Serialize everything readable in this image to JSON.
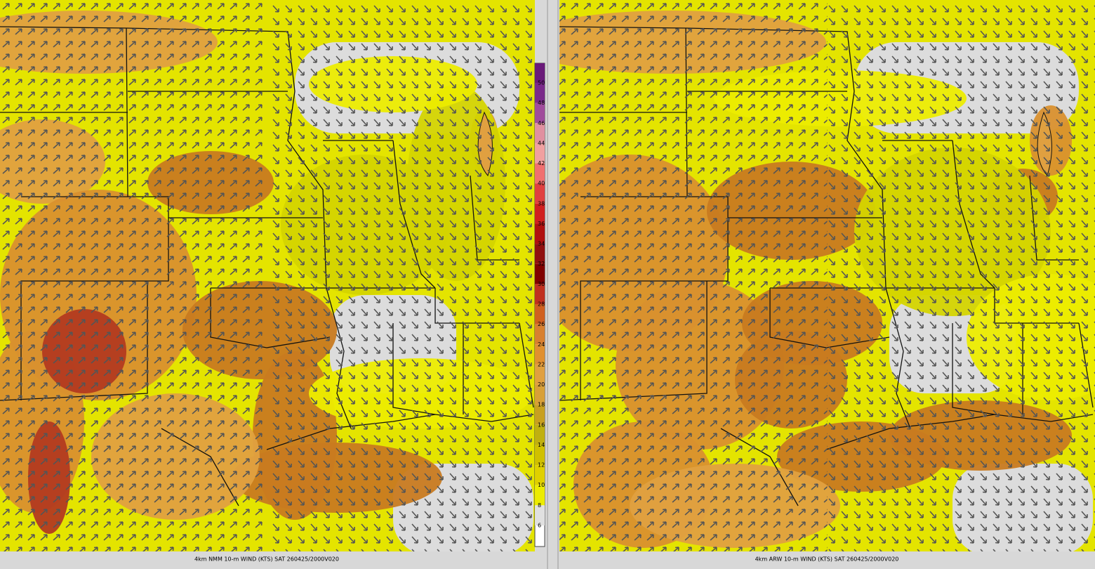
{
  "panels": [
    {
      "caption": "4km NMM 10-m WIND (KTS) SAT 260425/2000V020"
    },
    {
      "caption": "4km ARW 10-m WIND (KTS) SAT 260425/2000V020"
    }
  ],
  "colorbar": {
    "labels": [
      50,
      48,
      46,
      44,
      42,
      40,
      38,
      36,
      34,
      32,
      30,
      28,
      26,
      24,
      22,
      20,
      18,
      16,
      14,
      12,
      10,
      8,
      6
    ]
  }
}
